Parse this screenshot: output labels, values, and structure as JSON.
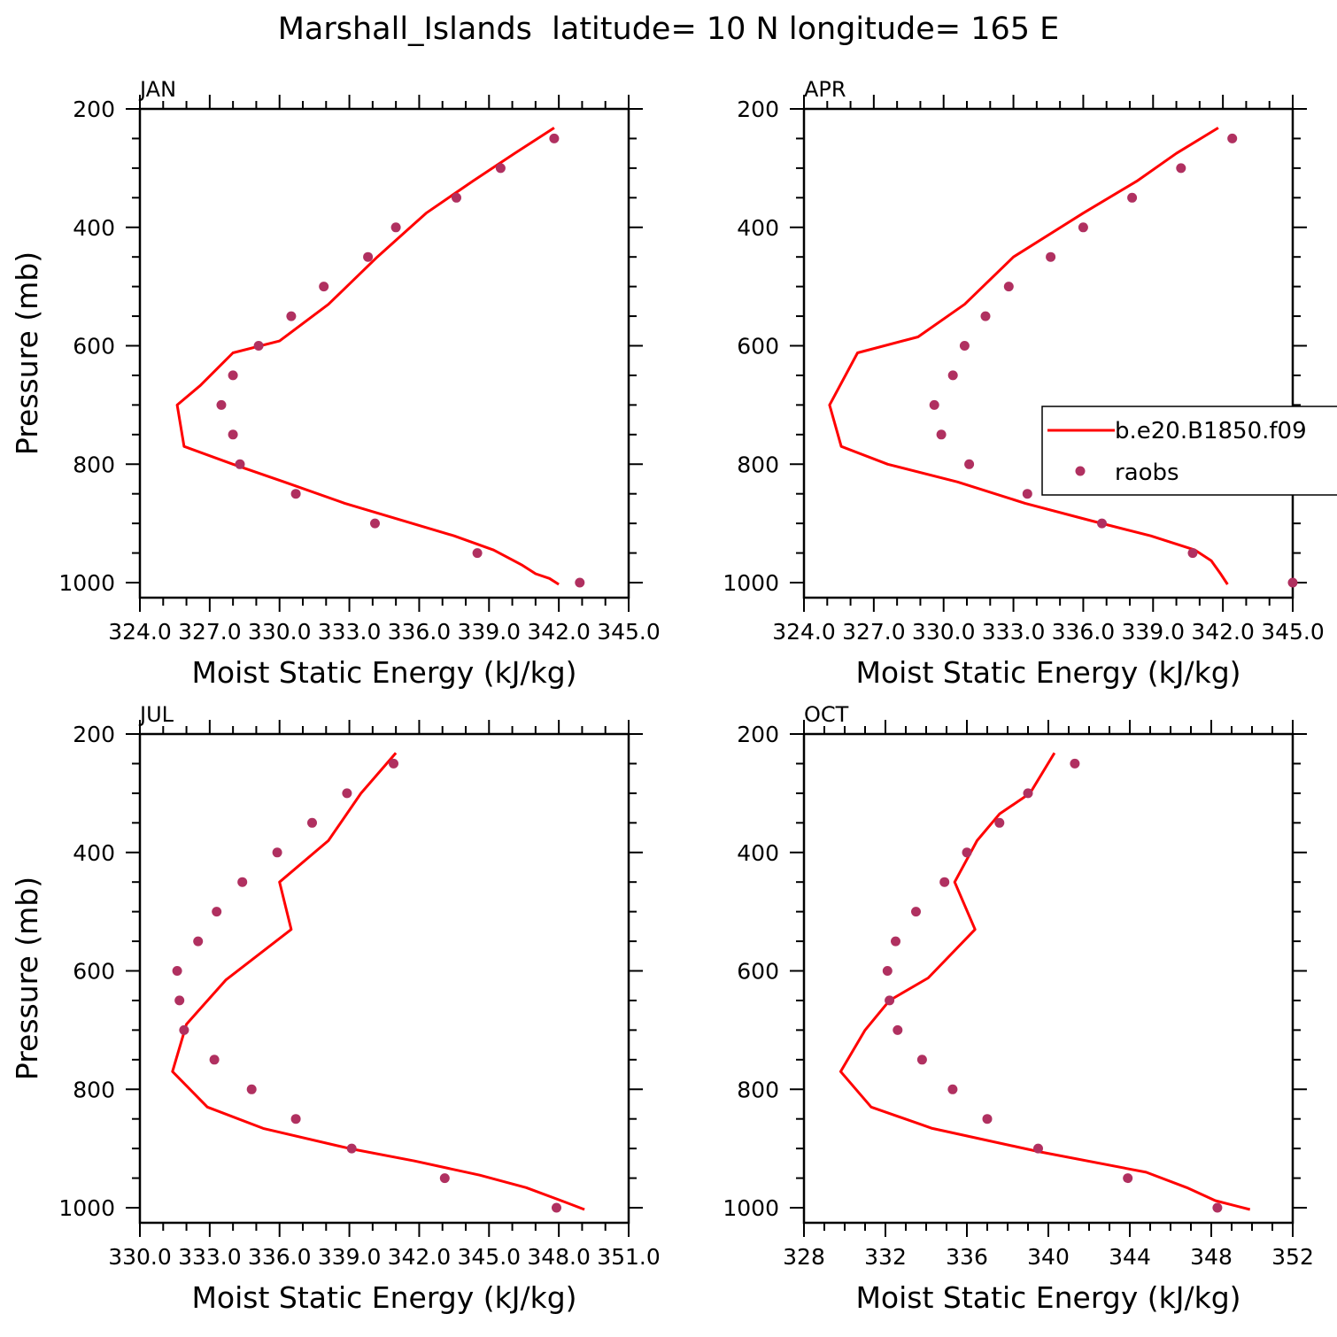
{
  "title": "Marshall_Islands  latitude= 10 N longitude= 165 E",
  "colors": {
    "model_line": "#ff0000",
    "raobs_marker": "#b03060",
    "axes": "#000000"
  },
  "legend": {
    "position": "right, overlapping APR panel",
    "entries": [
      {
        "label": "b.e20.B1850.f09",
        "style": "line"
      },
      {
        "label": "raobs",
        "style": "dot"
      }
    ]
  },
  "chart_data": [
    {
      "type": "line",
      "panel": "JAN",
      "xlabel": "Moist Static Energy (kJ/kg)",
      "ylabel": "Pressure (mb)",
      "xlim": [
        324,
        345
      ],
      "ylim": [
        1000,
        200
      ],
      "xtick_labels": [
        "324.0",
        "327.0",
        "330.0",
        "333.0",
        "336.0",
        "339.0",
        "342.0",
        "345.0"
      ],
      "ytick_labels": [
        "200",
        "400",
        "600",
        "800",
        "1000"
      ],
      "series": [
        {
          "name": "b.e20.B1850.f09",
          "kind": "line",
          "x": [
            341.8,
            340.1,
            338.3,
            336.3,
            334.2,
            332.1,
            330.0,
            328.0,
            326.6,
            325.6,
            325.9,
            328.0,
            330.2,
            332.8,
            335.1,
            337.5,
            339.2,
            340.4,
            341.0,
            341.6,
            342.0
          ],
          "y": [
            232,
            275,
            322,
            376,
            450,
            530,
            592,
            612,
            667,
            700,
            770,
            800,
            830,
            866,
            893,
            921,
            945,
            970,
            985,
            993,
            1003
          ]
        },
        {
          "name": "raobs",
          "kind": "marker",
          "x": [
            341.8,
            339.5,
            337.6,
            335.0,
            333.8,
            331.9,
            330.5,
            329.1,
            328.0,
            327.5,
            328.0,
            328.3,
            330.7,
            334.1,
            338.5,
            342.9
          ],
          "y": [
            250,
            300,
            350,
            400,
            450,
            500,
            550,
            600,
            650,
            700,
            750,
            800,
            850,
            900,
            950,
            1000
          ]
        }
      ]
    },
    {
      "type": "line",
      "panel": "APR",
      "xlabel": "Moist Static Energy (kJ/kg)",
      "ylabel": "",
      "xlim": [
        324,
        345
      ],
      "ylim": [
        1000,
        200
      ],
      "xtick_labels": [
        "324.0",
        "327.0",
        "330.0",
        "333.0",
        "336.0",
        "339.0",
        "342.0",
        "345.0"
      ],
      "ytick_labels": [
        "200",
        "400",
        "600",
        "800",
        "1000"
      ],
      "series": [
        {
          "name": "b.e20.B1850.f09",
          "kind": "line",
          "x": [
            341.8,
            340.0,
            338.3,
            336.0,
            333.0,
            330.9,
            328.9,
            326.3,
            325.1,
            325.6,
            327.6,
            330.6,
            333.5,
            336.4,
            338.9,
            340.8,
            341.5,
            341.9,
            342.2
          ],
          "y": [
            232,
            275,
            322,
            376,
            450,
            530,
            585,
            612,
            700,
            770,
            800,
            830,
            866,
            896,
            921,
            945,
            963,
            985,
            1003
          ]
        },
        {
          "name": "raobs",
          "kind": "marker",
          "x": [
            342.4,
            340.2,
            338.1,
            336.0,
            334.6,
            332.8,
            331.8,
            330.9,
            330.4,
            329.6,
            329.9,
            331.1,
            333.6,
            336.8,
            340.7,
            345.0
          ],
          "y": [
            250,
            300,
            350,
            400,
            450,
            500,
            550,
            600,
            650,
            700,
            750,
            800,
            850,
            900,
            950,
            1000
          ]
        }
      ]
    },
    {
      "type": "line",
      "panel": "JUL",
      "xlabel": "Moist Static Energy (kJ/kg)",
      "ylabel": "Pressure (mb)",
      "xlim": [
        330,
        351
      ],
      "ylim": [
        1000,
        200
      ],
      "xtick_labels": [
        "330.0",
        "333.0",
        "336.0",
        "339.0",
        "342.0",
        "345.0",
        "348.0",
        "351.0"
      ],
      "ytick_labels": [
        "200",
        "400",
        "600",
        "800",
        "1000"
      ],
      "series": [
        {
          "name": "b.e20.B1850.f09",
          "kind": "line",
          "x": [
            341.0,
            339.5,
            338.1,
            336.0,
            336.5,
            333.7,
            332.0,
            331.4,
            332.9,
            335.3,
            339.0,
            341.8,
            344.6,
            346.6,
            348.1,
            349.1
          ],
          "y": [
            232,
            300,
            380,
            450,
            530,
            615,
            690,
            770,
            830,
            866,
            900,
            921,
            945,
            966,
            988,
            1003
          ]
        },
        {
          "name": "raobs",
          "kind": "marker",
          "x": [
            340.9,
            338.9,
            337.4,
            335.9,
            334.4,
            333.3,
            332.5,
            331.6,
            331.7,
            331.9,
            333.2,
            334.8,
            336.7,
            339.1,
            343.1,
            347.9
          ],
          "y": [
            250,
            300,
            350,
            400,
            450,
            500,
            550,
            600,
            650,
            700,
            750,
            800,
            850,
            900,
            950,
            1000
          ]
        }
      ]
    },
    {
      "type": "line",
      "panel": "OCT",
      "xlabel": "Moist Static Energy (kJ/kg)",
      "ylabel": "",
      "xlim": [
        328,
        352
      ],
      "ylim": [
        1000,
        200
      ],
      "xtick_labels": [
        "328",
        "332",
        "336",
        "340",
        "344",
        "348",
        "352"
      ],
      "ytick_labels": [
        "200",
        "400",
        "600",
        "800",
        "1000"
      ],
      "series": [
        {
          "name": "b.e20.B1850.f09",
          "kind": "line",
          "x": [
            340.3,
            339.1,
            337.6,
            336.5,
            335.4,
            336.4,
            334.1,
            332.2,
            331.0,
            329.8,
            331.3,
            334.3,
            339.5,
            344.8,
            346.8,
            348.2,
            349.9
          ],
          "y": [
            232,
            300,
            335,
            380,
            450,
            530,
            612,
            650,
            700,
            770,
            830,
            866,
            905,
            940,
            966,
            988,
            1003
          ]
        },
        {
          "name": "raobs",
          "kind": "marker",
          "x": [
            341.3,
            339.0,
            337.6,
            336.0,
            334.9,
            333.5,
            332.5,
            332.1,
            332.2,
            332.6,
            333.8,
            335.3,
            337.0,
            339.5,
            343.9,
            348.3
          ],
          "y": [
            250,
            300,
            350,
            400,
            450,
            500,
            550,
            600,
            650,
            700,
            750,
            800,
            850,
            900,
            950,
            1000
          ]
        }
      ]
    }
  ]
}
